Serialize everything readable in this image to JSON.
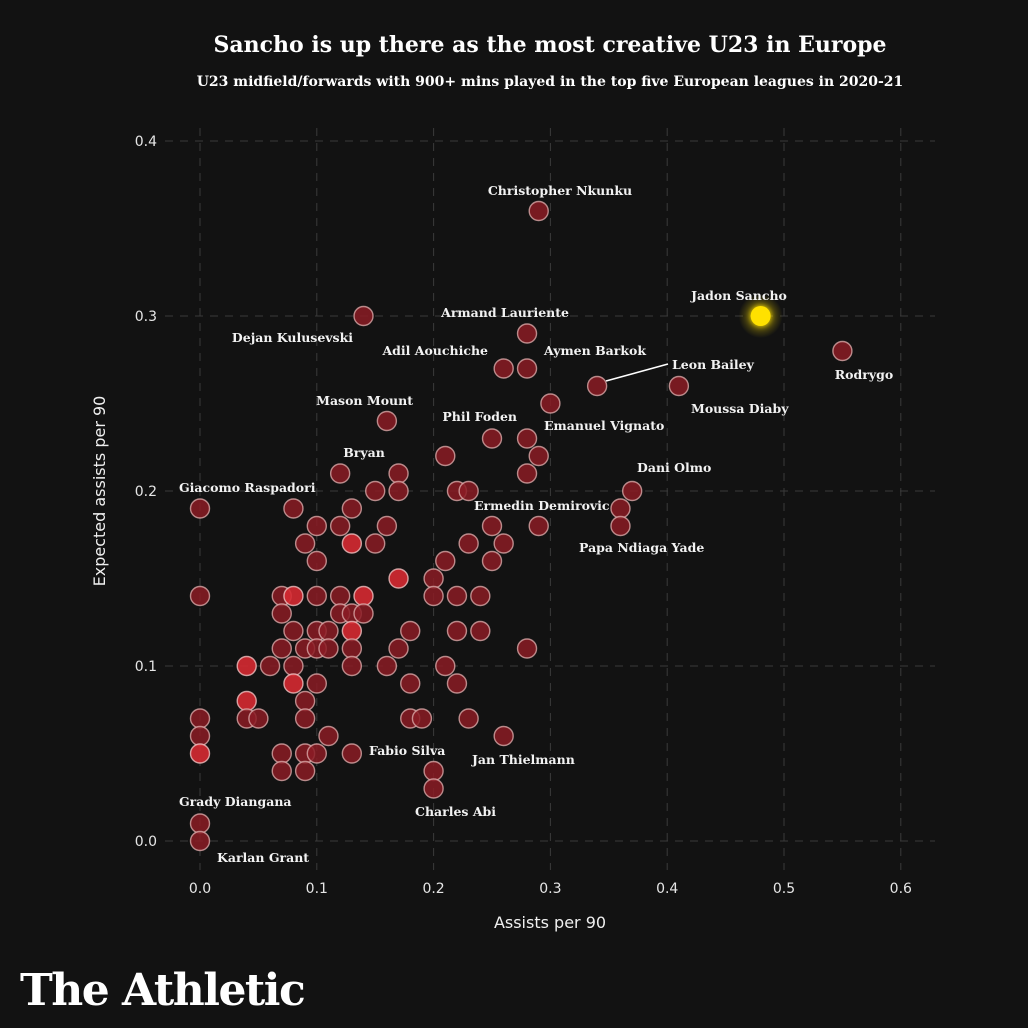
{
  "brand": "The Athletic",
  "chart_data": {
    "type": "scatter",
    "title": "Sancho is up there as the most creative U23 in Europe",
    "subtitle": "U23 midfield/forwards with 900+ mins played in the top five European leagues in 2020-21",
    "xlabel": "Assists per 90",
    "ylabel": "Expected assists per 90",
    "xlim": [
      -0.04,
      0.63
    ],
    "ylim": [
      -0.015,
      0.415
    ],
    "xticks": [
      0.0,
      0.1,
      0.2,
      0.3,
      0.4,
      0.5,
      0.6
    ],
    "yticks": [
      0.0,
      0.1,
      0.2,
      0.3,
      0.4
    ],
    "xtick_labels": [
      "0.0",
      "0.1",
      "0.2",
      "0.3",
      "0.4",
      "0.5",
      "0.6"
    ],
    "ytick_labels": [
      "0.0",
      "0.1",
      "0.2",
      "0.3",
      "0.4"
    ],
    "grid": true,
    "colors": {
      "background": "#121212",
      "point": "#8b1c24",
      "point_overlap": "#d62a32",
      "highlight": "#ffe100",
      "text": "#ffffff",
      "grid": "#3a3a3a"
    },
    "highlight": {
      "name": "Jadon Sancho",
      "x": 0.48,
      "y": 0.3
    },
    "labeled_points": [
      {
        "name": "Christopher Nkunku",
        "x": 0.29,
        "y": 0.36
      },
      {
        "name": "Jadon Sancho",
        "x": 0.48,
        "y": 0.3
      },
      {
        "name": "Dejan Kulusevski",
        "x": 0.14,
        "y": 0.3
      },
      {
        "name": "Armand Lauriente",
        "x": 0.28,
        "y": 0.29
      },
      {
        "name": "Rodrygo",
        "x": 0.55,
        "y": 0.28
      },
      {
        "name": "Adil Aouchiche",
        "x": 0.26,
        "y": 0.27
      },
      {
        "name": "Aymen Barkok",
        "x": 0.28,
        "y": 0.27
      },
      {
        "name": "Leon Bailey",
        "x": 0.34,
        "y": 0.26
      },
      {
        "name": "Moussa Diaby",
        "x": 0.41,
        "y": 0.26
      },
      {
        "name": "Mason Mount",
        "x": 0.16,
        "y": 0.24
      },
      {
        "name": "Phil Foden",
        "x": 0.25,
        "y": 0.23
      },
      {
        "name": "Emanuel Vignato",
        "x": 0.28,
        "y": 0.23
      },
      {
        "name": "Bryan",
        "x": 0.12,
        "y": 0.21
      },
      {
        "name": "Dani Olmo",
        "x": 0.37,
        "y": 0.2
      },
      {
        "name": "Giacomo Raspadori",
        "x": 0.0,
        "y": 0.19
      },
      {
        "name": "Ermedin Demirovic",
        "x": 0.29,
        "y": 0.18
      },
      {
        "name": "Papa Ndiaga Yade",
        "x": 0.36,
        "y": 0.18
      },
      {
        "name": "Fabio Silva",
        "x": 0.13,
        "y": 0.05
      },
      {
        "name": "Jan Thielmann",
        "x": 0.26,
        "y": 0.06
      },
      {
        "name": "Charles Abi",
        "x": 0.2,
        "y": 0.03
      },
      {
        "name": "Grady Diangana",
        "x": 0.0,
        "y": 0.01
      },
      {
        "name": "Karlan Grant",
        "x": 0.0,
        "y": 0.0
      }
    ],
    "points": [
      [
        0.29,
        0.36
      ],
      [
        0.14,
        0.3
      ],
      [
        0.28,
        0.29
      ],
      [
        0.55,
        0.28
      ],
      [
        0.26,
        0.27
      ],
      [
        0.28,
        0.27
      ],
      [
        0.34,
        0.26
      ],
      [
        0.41,
        0.26
      ],
      [
        0.3,
        0.25
      ],
      [
        0.16,
        0.24
      ],
      [
        0.25,
        0.23
      ],
      [
        0.28,
        0.23
      ],
      [
        0.21,
        0.22
      ],
      [
        0.29,
        0.22
      ],
      [
        0.12,
        0.21
      ],
      [
        0.17,
        0.21
      ],
      [
        0.28,
        0.21
      ],
      [
        0.15,
        0.2
      ],
      [
        0.17,
        0.2
      ],
      [
        0.22,
        0.2
      ],
      [
        0.23,
        0.2
      ],
      [
        0.37,
        0.2
      ],
      [
        0.0,
        0.19
      ],
      [
        0.08,
        0.19
      ],
      [
        0.13,
        0.19
      ],
      [
        0.36,
        0.19
      ],
      [
        0.1,
        0.18
      ],
      [
        0.12,
        0.18
      ],
      [
        0.16,
        0.18
      ],
      [
        0.25,
        0.18
      ],
      [
        0.29,
        0.18
      ],
      [
        0.36,
        0.18
      ],
      [
        0.09,
        0.17
      ],
      [
        0.13,
        0.17
      ],
      [
        0.15,
        0.17
      ],
      [
        0.23,
        0.17
      ],
      [
        0.26,
        0.17
      ],
      [
        0.1,
        0.16
      ],
      [
        0.21,
        0.16
      ],
      [
        0.25,
        0.16
      ],
      [
        0.17,
        0.15
      ],
      [
        0.2,
        0.15
      ],
      [
        0.0,
        0.14
      ],
      [
        0.07,
        0.14
      ],
      [
        0.08,
        0.14
      ],
      [
        0.1,
        0.14
      ],
      [
        0.12,
        0.14
      ],
      [
        0.14,
        0.14
      ],
      [
        0.2,
        0.14
      ],
      [
        0.22,
        0.14
      ],
      [
        0.24,
        0.14
      ],
      [
        0.07,
        0.13
      ],
      [
        0.12,
        0.13
      ],
      [
        0.13,
        0.13
      ],
      [
        0.14,
        0.13
      ],
      [
        0.08,
        0.12
      ],
      [
        0.1,
        0.12
      ],
      [
        0.11,
        0.12
      ],
      [
        0.13,
        0.12
      ],
      [
        0.18,
        0.12
      ],
      [
        0.22,
        0.12
      ],
      [
        0.24,
        0.12
      ],
      [
        0.07,
        0.11
      ],
      [
        0.09,
        0.11
      ],
      [
        0.1,
        0.11
      ],
      [
        0.11,
        0.11
      ],
      [
        0.13,
        0.11
      ],
      [
        0.17,
        0.11
      ],
      [
        0.28,
        0.11
      ],
      [
        0.04,
        0.1
      ],
      [
        0.06,
        0.1
      ],
      [
        0.08,
        0.1
      ],
      [
        0.13,
        0.1
      ],
      [
        0.16,
        0.1
      ],
      [
        0.21,
        0.1
      ],
      [
        0.08,
        0.09
      ],
      [
        0.1,
        0.09
      ],
      [
        0.18,
        0.09
      ],
      [
        0.22,
        0.09
      ],
      [
        0.04,
        0.08
      ],
      [
        0.09,
        0.08
      ],
      [
        0.0,
        0.07
      ],
      [
        0.04,
        0.07
      ],
      [
        0.05,
        0.07
      ],
      [
        0.09,
        0.07
      ],
      [
        0.18,
        0.07
      ],
      [
        0.19,
        0.07
      ],
      [
        0.23,
        0.07
      ],
      [
        0.0,
        0.06
      ],
      [
        0.11,
        0.06
      ],
      [
        0.26,
        0.06
      ],
      [
        0.0,
        0.05
      ],
      [
        0.07,
        0.05
      ],
      [
        0.09,
        0.05
      ],
      [
        0.1,
        0.05
      ],
      [
        0.13,
        0.05
      ],
      [
        0.07,
        0.04
      ],
      [
        0.09,
        0.04
      ],
      [
        0.2,
        0.04
      ],
      [
        0.2,
        0.03
      ],
      [
        0.0,
        0.01
      ],
      [
        0.0,
        0.0
      ]
    ],
    "overlap_bright_points": [
      [
        0.13,
        0.17
      ],
      [
        0.17,
        0.15
      ],
      [
        0.08,
        0.14
      ],
      [
        0.14,
        0.14
      ],
      [
        0.13,
        0.12
      ],
      [
        0.04,
        0.1
      ],
      [
        0.08,
        0.09
      ],
      [
        0.04,
        0.08
      ],
      [
        0.0,
        0.05
      ]
    ]
  }
}
